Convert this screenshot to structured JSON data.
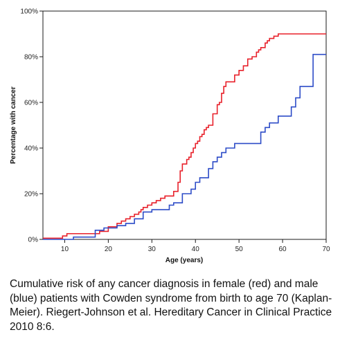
{
  "chart_data": {
    "type": "line",
    "step": true,
    "xlabel": "Age (years)",
    "ylabel": "Percentage with cancer",
    "xlim": [
      5,
      70
    ],
    "ylim": [
      0,
      100
    ],
    "x_ticks": [
      10,
      20,
      30,
      40,
      50,
      60,
      70
    ],
    "y_ticks": [
      0,
      20,
      40,
      60,
      80,
      100
    ],
    "x_tick_labels": [
      "10",
      "20",
      "30",
      "40",
      "50",
      "60",
      "70"
    ],
    "y_tick_labels": [
      "0%",
      "20%",
      "40%",
      "60%",
      "80%",
      "100%"
    ],
    "grid": false,
    "series": [
      {
        "color": "#e8202a",
        "x": [
          5,
          9.5,
          10.5,
          18,
          20,
          22,
          23,
          24,
          25,
          26,
          27,
          27.5,
          28,
          29,
          30,
          31,
          32,
          33,
          35,
          36,
          36.5,
          37,
          38,
          38.5,
          39,
          39.5,
          40,
          40.5,
          41,
          41.5,
          42,
          42.5,
          43,
          44,
          45,
          45.5,
          46,
          46.5,
          47,
          47.5,
          49,
          50,
          51,
          52,
          52.5,
          53,
          54,
          54.5,
          55,
          56,
          56.5,
          57,
          58,
          59,
          70
        ],
        "y": [
          0.5,
          1.5,
          2.5,
          3.5,
          5.5,
          7,
          8,
          9,
          10,
          11,
          12,
          13,
          14,
          15,
          16,
          17,
          18,
          19,
          21,
          25,
          30,
          33,
          35,
          36,
          38,
          40,
          42,
          43,
          45,
          46,
          48,
          49,
          50,
          55,
          59,
          60,
          64,
          67,
          69,
          69,
          72,
          74,
          76,
          79,
          79,
          80,
          82,
          83,
          84,
          86,
          87,
          88,
          89,
          90,
          90
        ]
      },
      {
        "color": "#2c4bc7",
        "x": [
          5,
          12,
          17,
          19,
          22,
          24,
          26,
          28,
          30,
          34,
          35,
          37,
          39,
          40,
          41,
          43,
          44,
          45,
          46,
          47,
          49,
          55,
          56,
          57,
          59,
          62,
          63,
          64,
          66,
          67,
          70
        ],
        "y": [
          0,
          1,
          4,
          5,
          6,
          7,
          9,
          12,
          13,
          15,
          16,
          20,
          22,
          25,
          27,
          31,
          34,
          36,
          38,
          40,
          42,
          47,
          49,
          51,
          54,
          58,
          62,
          67,
          67,
          81,
          81
        ]
      }
    ]
  },
  "caption": "Cumulative risk of any cancer diagnosis in female (red) and male (blue) patients with Cowden syndrome from birth to age 70 (Kaplan-Meier). Riegert-Johnson et al. Hereditary Cancer in Clinical Practice 2010 8:6."
}
